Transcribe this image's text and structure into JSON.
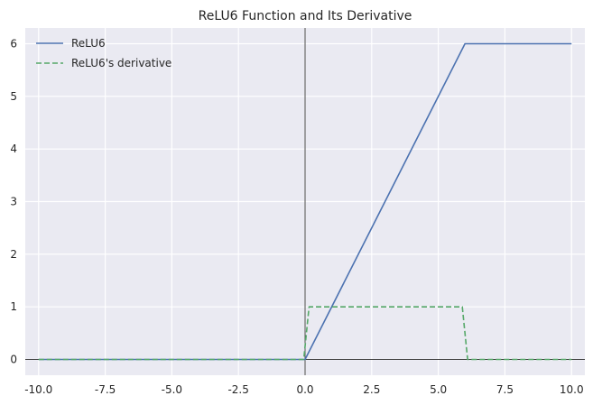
{
  "chart_data": {
    "type": "line",
    "title": "ReLU6 Function and Its Derivative",
    "xlabel": "",
    "ylabel": "",
    "xlim": [
      -10.5,
      10.5
    ],
    "ylim": [
      -0.3,
      6.3
    ],
    "xticks": [
      -10.0,
      -7.5,
      -5.0,
      -2.5,
      0.0,
      2.5,
      5.0,
      7.5,
      10.0
    ],
    "xtick_labels": [
      "-10.0",
      "-7.5",
      "-5.0",
      "-2.5",
      "0.0",
      "2.5",
      "5.0",
      "7.5",
      "10.0"
    ],
    "yticks": [
      0,
      1,
      2,
      3,
      4,
      5,
      6
    ],
    "ytick_labels": [
      "0",
      "1",
      "2",
      "3",
      "4",
      "5",
      "6"
    ],
    "grid": true,
    "legend_position": "upper-left",
    "reference_lines": {
      "vertical_x": 0,
      "horizontal_y": 0,
      "color": "#000000"
    },
    "series": [
      {
        "name": "ReLU6",
        "style": "solid",
        "color": "#4c72b0",
        "x": [
          -10,
          0,
          6,
          10
        ],
        "y": [
          0,
          0,
          6,
          6
        ]
      },
      {
        "name": "ReLU6's derivative",
        "style": "dashed",
        "color": "#55a868",
        "x": [
          -10,
          -0.05,
          0.15,
          5.9,
          6.1,
          10
        ],
        "y": [
          0,
          0,
          1,
          1,
          0,
          0
        ]
      }
    ]
  },
  "colors": {
    "plot_background": "#eaeaf2",
    "grid": "#ffffff",
    "text": "#262626"
  }
}
